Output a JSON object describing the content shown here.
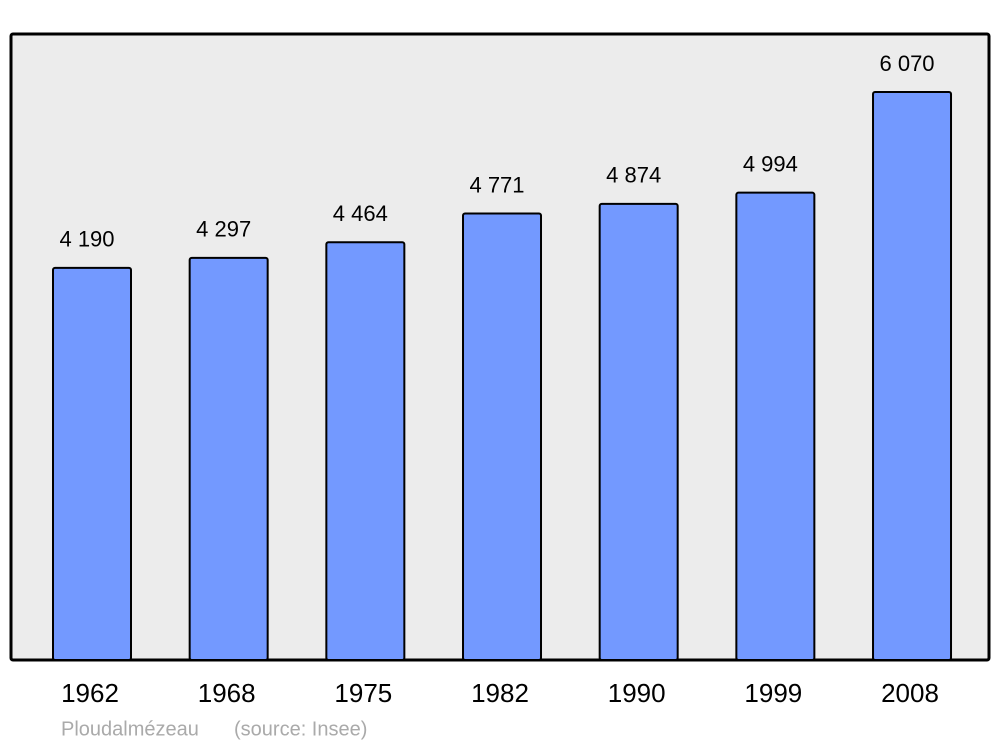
{
  "chart_data": {
    "type": "bar",
    "categories": [
      "1962",
      "1968",
      "1975",
      "1982",
      "1990",
      "1999",
      "2008"
    ],
    "values": [
      4190,
      4297,
      4464,
      4771,
      4874,
      4994,
      6070
    ],
    "value_labels": [
      "4 190",
      "4 297",
      "4 464",
      "4 771",
      "4 874",
      "4 994",
      "6 070"
    ],
    "color": "#7399ff",
    "caption": "Ploudalmézeau",
    "source": "(source: Insee)"
  }
}
